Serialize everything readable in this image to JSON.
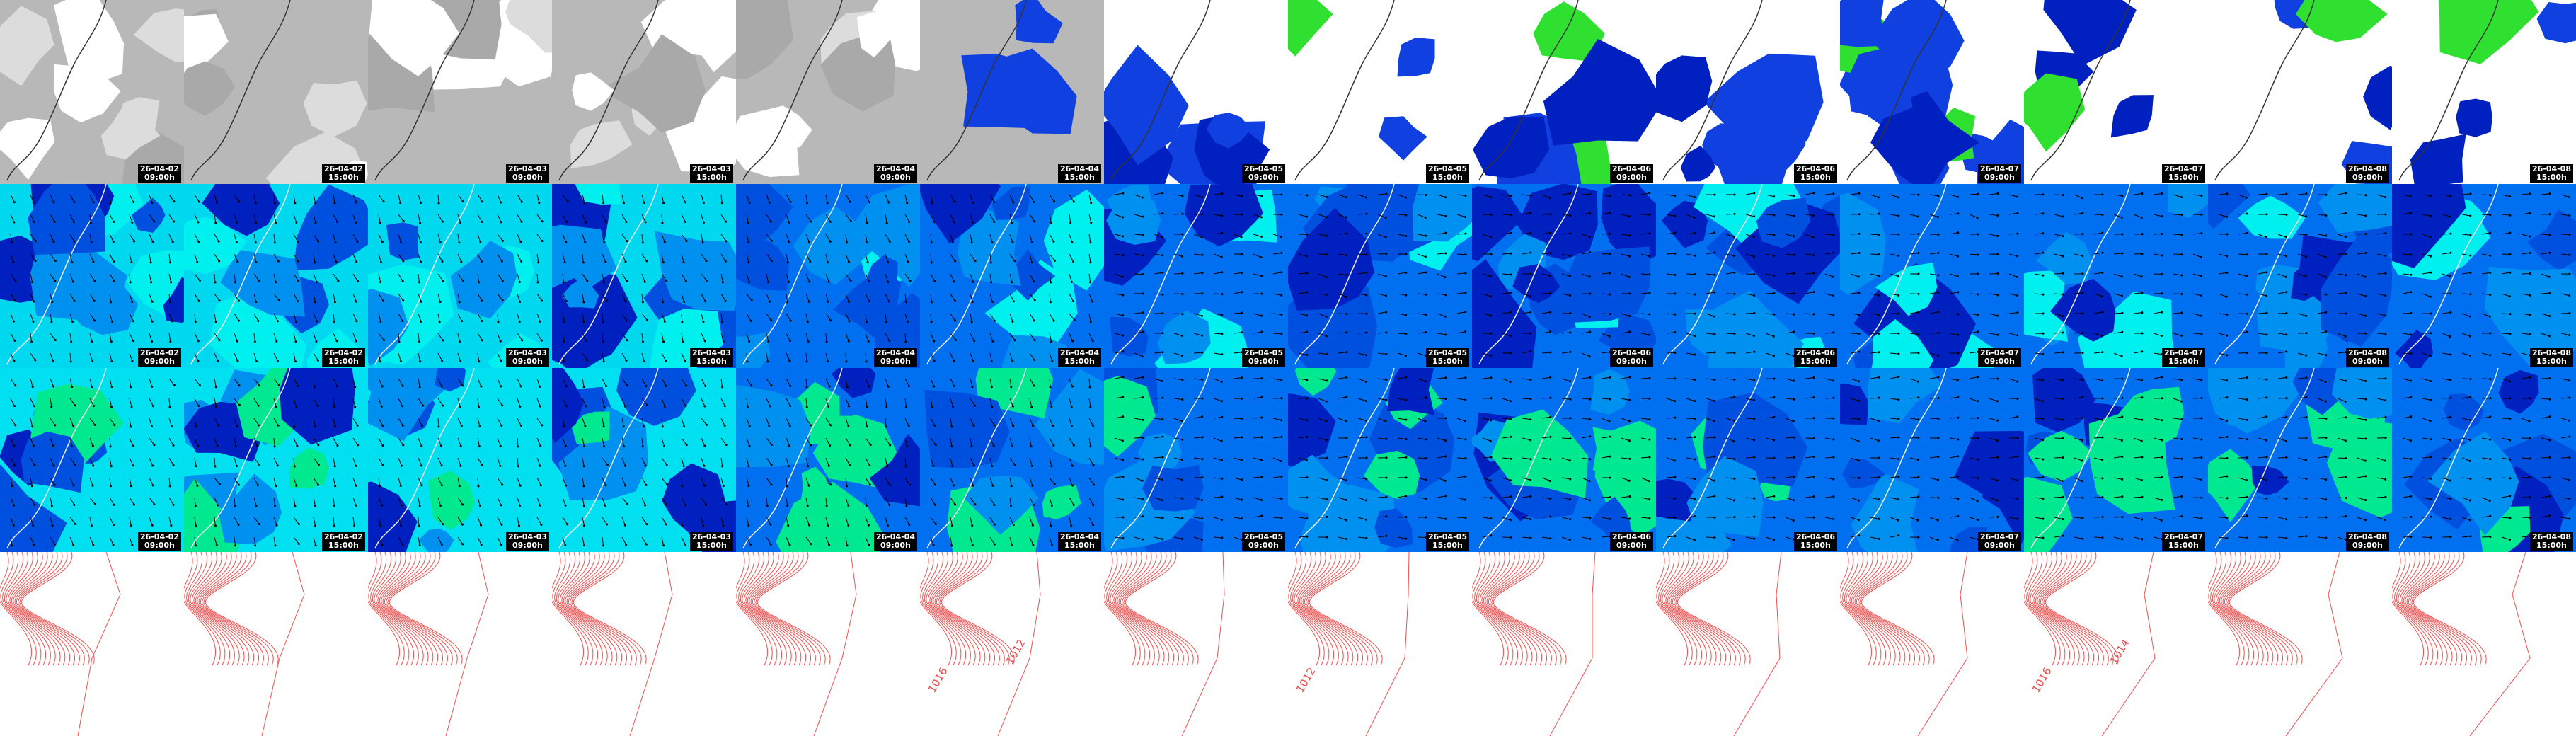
{
  "columns": [
    {
      "date": "26-04-02",
      "time": "09:00h"
    },
    {
      "date": "26-04-02",
      "time": "15:00h"
    },
    {
      "date": "26-04-03",
      "time": "09:00h"
    },
    {
      "date": "26-04-03",
      "time": "15:00h"
    },
    {
      "date": "26-04-04",
      "time": "09:00h"
    },
    {
      "date": "26-04-04",
      "time": "15:00h",
      "isobar_labels": [
        "1016",
        "1012"
      ]
    },
    {
      "date": "26-04-05",
      "time": "09:00h"
    },
    {
      "date": "26-04-05",
      "time": "15:00h",
      "isobar_labels": [
        "1012"
      ]
    },
    {
      "date": "26-04-06",
      "time": "09:00h"
    },
    {
      "date": "26-04-06",
      "time": "15:00h"
    },
    {
      "date": "26-04-07",
      "time": "09:00h"
    },
    {
      "date": "26-04-07",
      "time": "15:00h",
      "isobar_labels": [
        "1016",
        "1014"
      ]
    },
    {
      "date": "26-04-08",
      "time": "09:00h"
    },
    {
      "date": "26-04-08",
      "time": "15:00h"
    }
  ]
}
